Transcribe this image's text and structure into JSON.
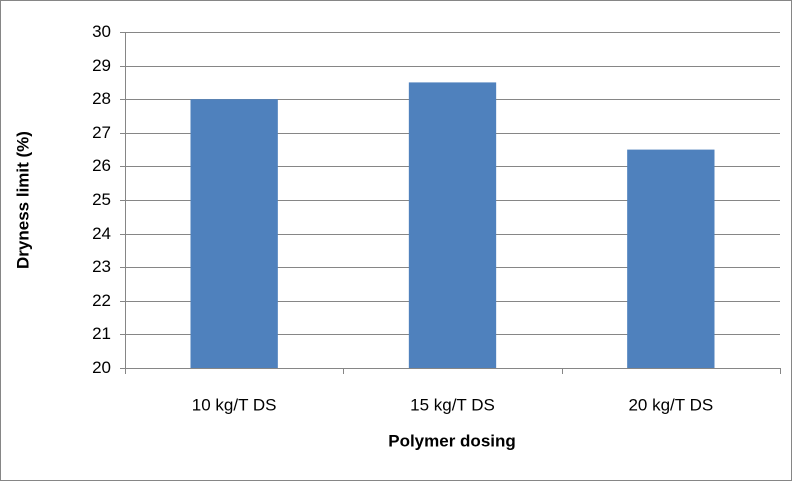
{
  "chart_data": {
    "type": "bar",
    "x_label": "Polymer dosing",
    "y_label": "Dryness limit (%)",
    "categories": [
      "10 kg/T DS",
      "15 kg/T DS",
      "20 kg/T DS"
    ],
    "values": [
      28,
      28.5,
      26.5
    ],
    "color": "#4f81bd",
    "ylim": [
      20,
      30
    ],
    "yticks": [
      20,
      21,
      22,
      23,
      24,
      25,
      26,
      27,
      28,
      29,
      30
    ],
    "grid": true
  }
}
